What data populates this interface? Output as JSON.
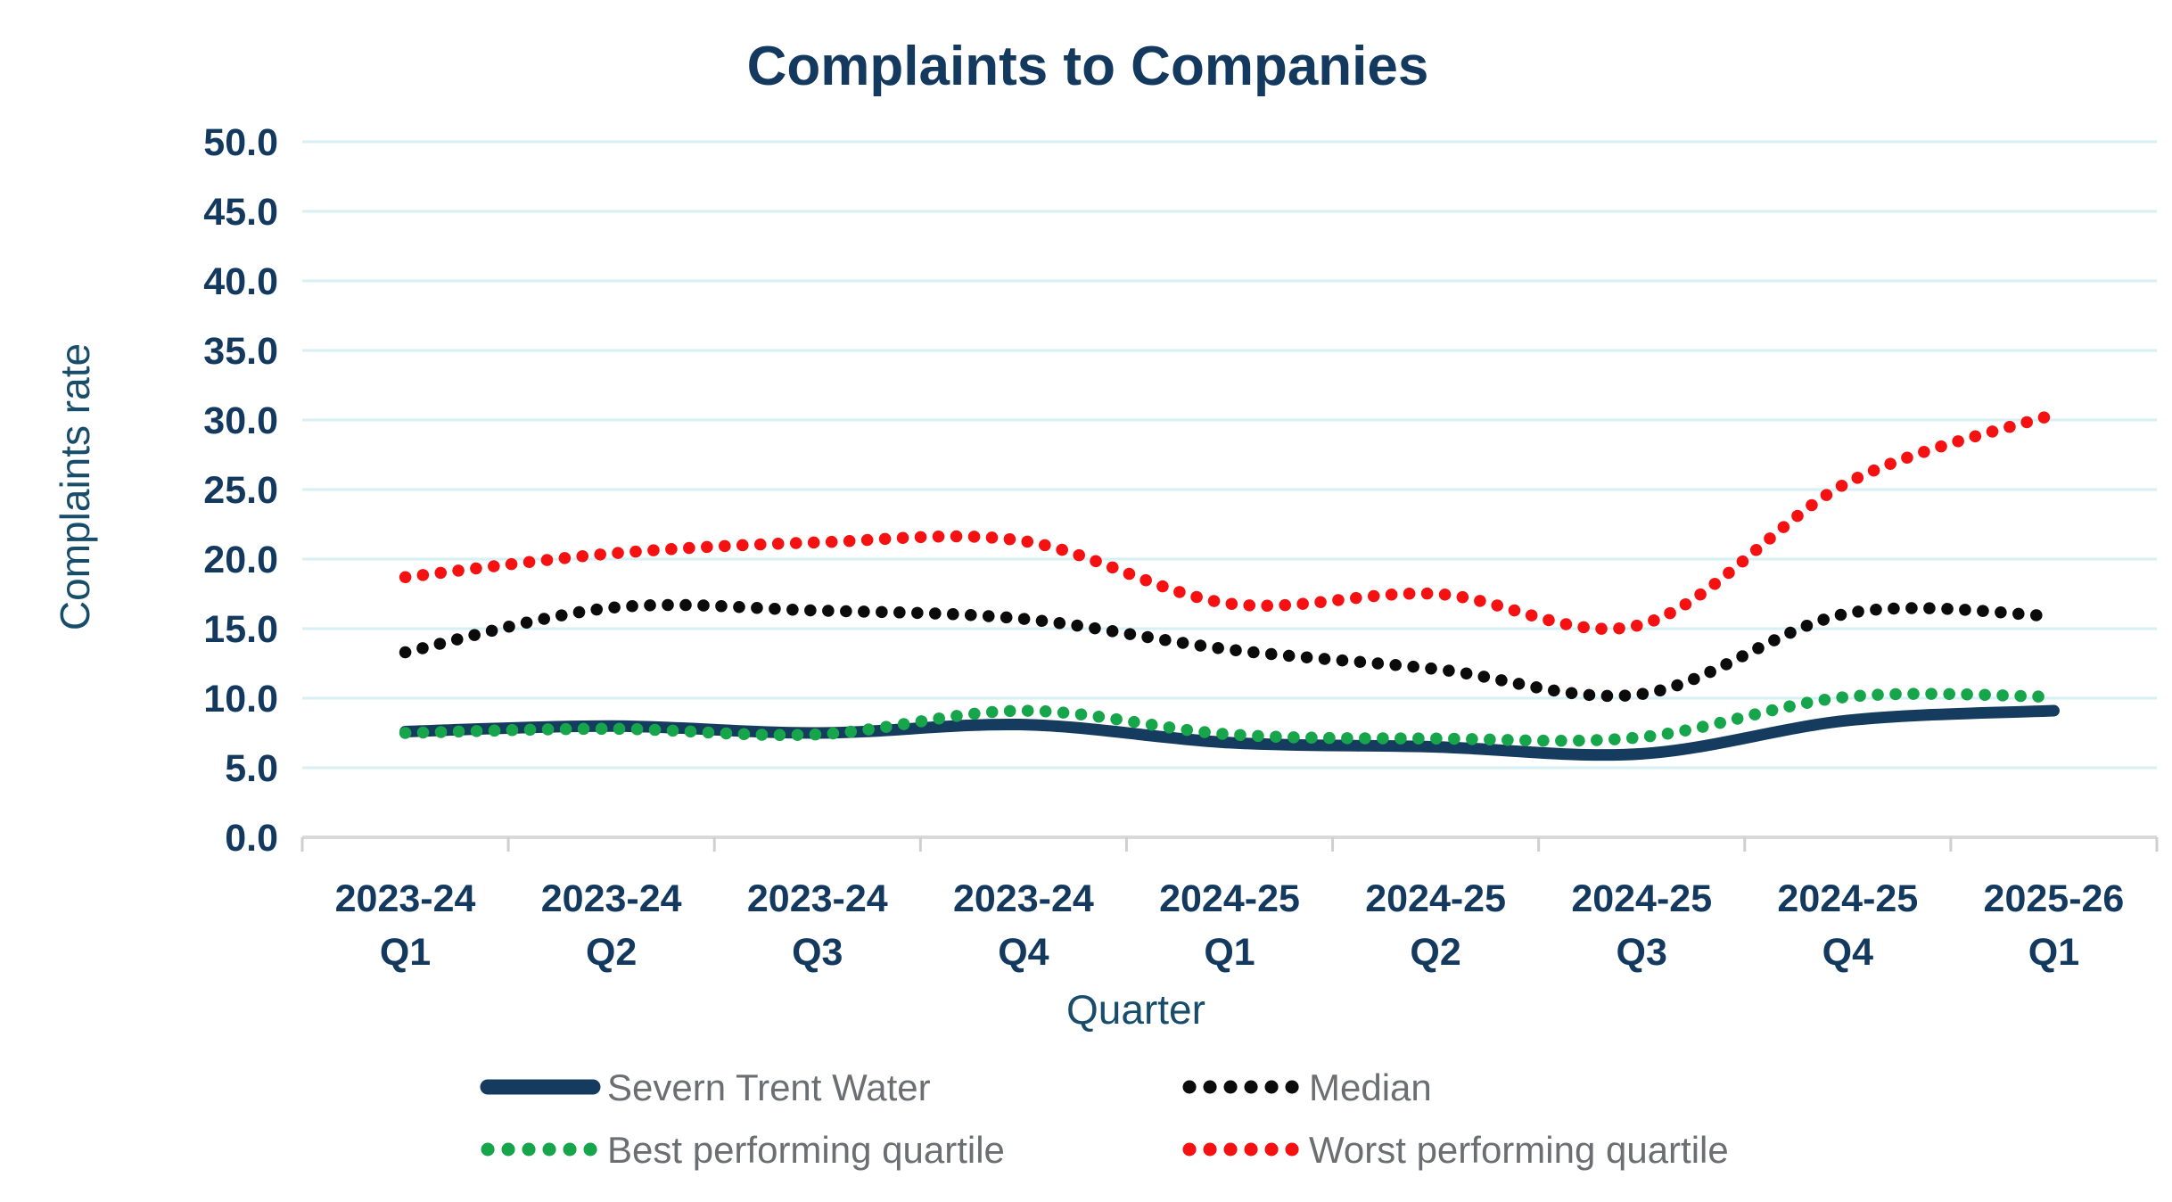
{
  "chart_data": {
    "type": "line",
    "title": "Complaints to Companies",
    "xlabel": "Quarter",
    "ylabel": "Complaints rate",
    "ylim": [
      0,
      50
    ],
    "ytick_step": 5,
    "ytick_labels": [
      "0.0",
      "5.0",
      "10.0",
      "15.0",
      "20.0",
      "25.0",
      "30.0",
      "35.0",
      "40.0",
      "45.0",
      "50.0"
    ],
    "grid": true,
    "legend_position": "bottom",
    "colors": {
      "grid": "#d6f0f5",
      "axis_line": "#d9d9d9",
      "boundary_tick": "#cfcfcf",
      "title_text": "#14395f",
      "tick_label_text": "#14395f",
      "axis_title_text": "#174c6b",
      "legend_text": "#6b6f72"
    },
    "categories": [
      {
        "year": "2023-24",
        "quarter": "Q1"
      },
      {
        "year": "2023-24",
        "quarter": "Q2"
      },
      {
        "year": "2023-24",
        "quarter": "Q3"
      },
      {
        "year": "2023-24",
        "quarter": "Q4"
      },
      {
        "year": "2024-25",
        "quarter": "Q1"
      },
      {
        "year": "2024-25",
        "quarter": "Q2"
      },
      {
        "year": "2024-25",
        "quarter": "Q3"
      },
      {
        "year": "2024-25",
        "quarter": "Q4"
      },
      {
        "year": "2025-26",
        "quarter": "Q1"
      }
    ],
    "series": [
      {
        "name": "Severn Trent Water",
        "style": "solid",
        "color": "#153c5e",
        "values": [
          7.6,
          8.0,
          7.5,
          8.1,
          6.8,
          6.5,
          6.0,
          8.4,
          9.1
        ]
      },
      {
        "name": "Median",
        "style": "dotted",
        "color": "#0b0b0b",
        "values": [
          13.3,
          16.5,
          16.3,
          15.7,
          13.5,
          12.1,
          10.3,
          16.1,
          15.9
        ]
      },
      {
        "name": "Best performing quartile",
        "style": "dotted",
        "color": "#17a54b",
        "values": [
          7.5,
          7.8,
          7.4,
          9.1,
          7.4,
          7.1,
          7.2,
          10.1,
          10.1
        ]
      },
      {
        "name": "Worst performing quartile",
        "style": "dotted",
        "color": "#f51011",
        "values": [
          18.7,
          20.4,
          21.2,
          21.3,
          16.8,
          17.5,
          15.3,
          25.5,
          30.4
        ]
      }
    ]
  }
}
